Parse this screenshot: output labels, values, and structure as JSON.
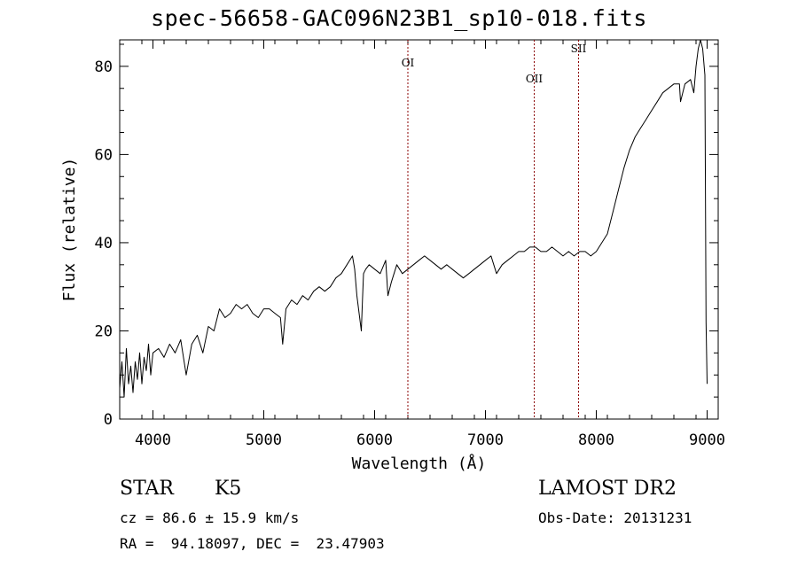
{
  "chart_data": {
    "type": "line",
    "title": "spec-56658-GAC096N23B1_sp10-018.fits",
    "xlabel": "Wavelength (Å)",
    "ylabel": "Flux (relative)",
    "xlim": [
      3700,
      9100
    ],
    "ylim": [
      0,
      86
    ],
    "xticks": [
      4000,
      5000,
      6000,
      7000,
      8000,
      9000
    ],
    "yticks": [
      0,
      20,
      40,
      60,
      80
    ],
    "grid": false,
    "line_color": "#000000",
    "marker_color": "#8b0000",
    "series": [
      {
        "x": [
          3700,
          3720,
          3740,
          3760,
          3780,
          3800,
          3820,
          3840,
          3860,
          3880,
          3900,
          3920,
          3940,
          3960,
          3980,
          4000,
          4050,
          4100,
          4150,
          4200,
          4250,
          4300,
          4350,
          4400,
          4450,
          4500,
          4550,
          4600,
          4650,
          4700,
          4750,
          4800,
          4850,
          4900,
          4950,
          5000,
          5050,
          5100,
          5150,
          5170,
          5200,
          5250,
          5300,
          5350,
          5400,
          5450,
          5500,
          5550,
          5600,
          5650,
          5700,
          5750,
          5800,
          5820,
          5840,
          5860,
          5880,
          5890,
          5900,
          5920,
          5950,
          6000,
          6050,
          6100,
          6120,
          6150,
          6200,
          6250,
          6300,
          6350,
          6400,
          6450,
          6500,
          6550,
          6600,
          6650,
          6700,
          6750,
          6800,
          6850,
          6900,
          6950,
          7000,
          7050,
          7100,
          7150,
          7200,
          7250,
          7300,
          7350,
          7400,
          7450,
          7500,
          7550,
          7600,
          7650,
          7700,
          7750,
          7800,
          7850,
          7900,
          7950,
          8000,
          8050,
          8100,
          8150,
          8200,
          8250,
          8300,
          8350,
          8400,
          8450,
          8500,
          8550,
          8600,
          8650,
          8700,
          8750,
          8760,
          8800,
          8850,
          8880,
          8900,
          8920,
          8940,
          8960,
          8980,
          8990,
          9000
        ],
        "y": [
          7,
          13,
          5,
          16,
          8,
          12,
          6,
          13,
          9,
          15,
          8,
          14,
          11,
          17,
          10,
          15,
          16,
          14,
          17,
          15,
          18,
          10,
          17,
          19,
          15,
          21,
          20,
          25,
          23,
          24,
          26,
          25,
          26,
          24,
          23,
          25,
          25,
          24,
          23,
          17,
          25,
          27,
          26,
          28,
          27,
          29,
          30,
          29,
          30,
          32,
          33,
          35,
          37,
          34,
          28,
          24,
          20,
          27,
          33,
          34,
          35,
          34,
          33,
          36,
          28,
          31,
          35,
          33,
          34,
          35,
          36,
          37,
          36,
          35,
          34,
          35,
          34,
          33,
          32,
          33,
          34,
          35,
          36,
          37,
          33,
          35,
          36,
          37,
          38,
          38,
          39,
          39,
          38,
          38,
          39,
          38,
          37,
          38,
          37,
          38,
          38,
          37,
          38,
          40,
          42,
          47,
          52,
          57,
          61,
          64,
          66,
          68,
          70,
          72,
          74,
          75,
          76,
          76,
          72,
          76,
          77,
          74,
          80,
          84,
          86,
          84,
          78,
          22,
          8
        ]
      }
    ],
    "lines": [
      {
        "label": "OI",
        "x": 6300
      },
      {
        "label": "OII",
        "x": 7440
      },
      {
        "label": "SII",
        "x": 7840
      }
    ]
  },
  "info": {
    "class": "STAR",
    "subclass": "K5",
    "survey": "LAMOST DR2",
    "cz": "cz = 86.6 ± 15.9 km/s",
    "obs_date": "Obs-Date: 20131231",
    "coords": "RA =  94.18097, DEC =  23.47903"
  }
}
